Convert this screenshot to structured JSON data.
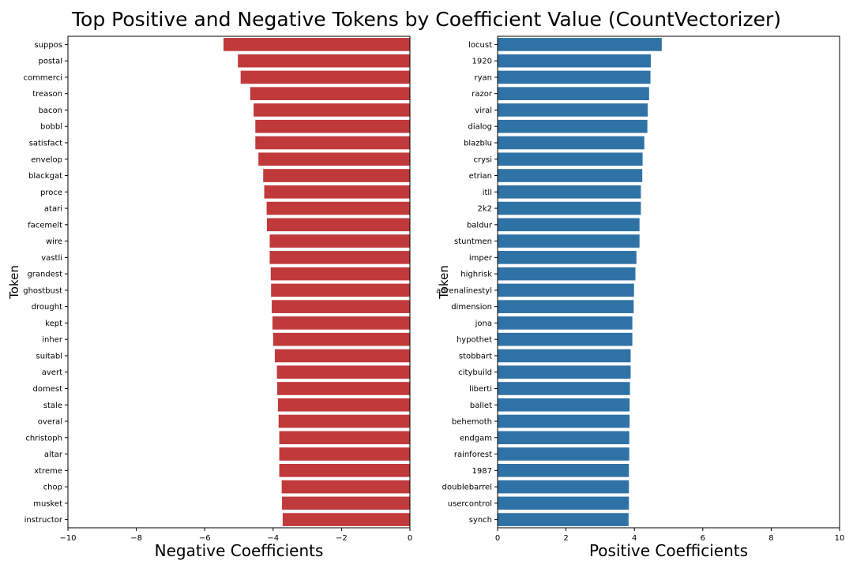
{
  "title": "Top Positive and Negative Tokens by Coefficient Value (CountVectorizer)",
  "colors": {
    "negative": "#c0393b",
    "positive": "#2f72a6"
  },
  "chart_data": [
    {
      "type": "bar",
      "orientation": "horizontal",
      "title": "",
      "xlabel": "Negative Coefficients",
      "ylabel": "Token",
      "xlim": [
        -10,
        0
      ],
      "xticks": [
        -10,
        -8,
        -6,
        -4,
        -2,
        0
      ],
      "grid": false,
      "categories": [
        "suppos",
        "postal",
        "commerci",
        "treason",
        "bacon",
        "bobbl",
        "satisfact",
        "envelop",
        "blackgat",
        "proce",
        "atari",
        "facemelt",
        "wire",
        "vastli",
        "grandest",
        "ghostbust",
        "drought",
        "kept",
        "inher",
        "suitabl",
        "avert",
        "domest",
        "stale",
        "overal",
        "christoph",
        "altar",
        "xtreme",
        "chop",
        "musket",
        "instructor"
      ],
      "values": [
        -5.45,
        -5.03,
        -4.95,
        -4.67,
        -4.57,
        -4.52,
        -4.52,
        -4.43,
        -4.29,
        -4.26,
        -4.19,
        -4.18,
        -4.1,
        -4.1,
        -4.07,
        -4.06,
        -4.04,
        -4.02,
        -4.0,
        -3.95,
        -3.89,
        -3.88,
        -3.86,
        -3.84,
        -3.82,
        -3.82,
        -3.82,
        -3.75,
        -3.74,
        -3.72
      ]
    },
    {
      "type": "bar",
      "orientation": "horizontal",
      "title": "",
      "xlabel": "Positive Coefficients",
      "ylabel": "Token",
      "xlim": [
        0,
        10
      ],
      "xticks": [
        0,
        2,
        4,
        6,
        8,
        10
      ],
      "grid": false,
      "categories": [
        "locust",
        "1920",
        "ryan",
        "razor",
        "viral",
        "dialog",
        "blazblu",
        "crysi",
        "etrian",
        "itll",
        "2k2",
        "baldur",
        "stuntmen",
        "imper",
        "highrisk",
        "adrenalinestyl",
        "dimension",
        "jona",
        "hypothet",
        "stobbart",
        "citybuild",
        "liberti",
        "ballet",
        "behemoth",
        "endgam",
        "rainforest",
        "1987",
        "doublebarrel",
        "usercontrol",
        "synch"
      ],
      "values": [
        4.8,
        4.48,
        4.47,
        4.43,
        4.39,
        4.38,
        4.29,
        4.24,
        4.23,
        4.19,
        4.19,
        4.15,
        4.15,
        4.06,
        4.03,
        3.99,
        3.98,
        3.94,
        3.94,
        3.89,
        3.89,
        3.87,
        3.86,
        3.86,
        3.85,
        3.85,
        3.84,
        3.84,
        3.84,
        3.83
      ]
    }
  ]
}
